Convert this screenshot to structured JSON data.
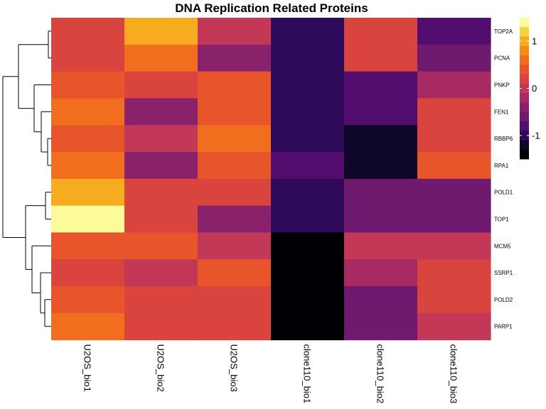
{
  "chart_data": {
    "type": "heatmap",
    "title": "DNA Replication Related Proteins",
    "rows": [
      "TOP2A",
      "PCNA",
      "PNKP",
      "FEN1",
      "RBBP6",
      "RPA1",
      "POLD1",
      "TOP1",
      "MCM5",
      "SSRP1",
      "POLD2",
      "PARP1"
    ],
    "columns": [
      "U2OS_bio1",
      "U2OS_bio2",
      "U2OS_bio3",
      "clone110_bio1",
      "clone110_bio2",
      "clone110_bio3"
    ],
    "values": [
      [
        0.25,
        1.05,
        0.05,
        -1.05,
        0.25,
        -0.75
      ],
      [
        0.25,
        0.65,
        -0.45,
        -1.05,
        0.25,
        -0.55
      ],
      [
        0.45,
        0.25,
        0.45,
        -1.05,
        -0.75,
        -0.25
      ],
      [
        0.65,
        -0.45,
        0.45,
        -1.05,
        -0.75,
        0.25
      ],
      [
        0.45,
        0.05,
        0.65,
        -0.95,
        -1.25,
        0.25
      ],
      [
        0.65,
        -0.45,
        0.45,
        -0.75,
        -1.25,
        0.45
      ],
      [
        1.05,
        0.25,
        0.25,
        -1.05,
        -0.55,
        -0.55
      ],
      [
        1.45,
        0.25,
        -0.45,
        -0.95,
        -0.55,
        -0.55
      ],
      [
        0.45,
        0.45,
        0.05,
        -1.45,
        0.05,
        0.05
      ],
      [
        0.25,
        0.05,
        0.45,
        -1.45,
        -0.25,
        0.25
      ],
      [
        0.45,
        0.25,
        0.25,
        -1.45,
        -0.55,
        0.25
      ],
      [
        0.65,
        0.25,
        0.25,
        -1.45,
        -0.55,
        0.05
      ]
    ],
    "colorscale": {
      "colors": [
        "#000004",
        "#0d0829",
        "#2f0a5b",
        "#520d6f",
        "#6f1a6e",
        "#8a216b",
        "#a82a63",
        "#c33757",
        "#d9443f",
        "#e8552b",
        "#f06e1d",
        "#f58e10",
        "#f7ac1f",
        "#f3d23e",
        "#fcfb99"
      ],
      "min": -1.5,
      "max": 1.5,
      "ticks": [
        {
          "value": 1,
          "label": "1"
        },
        {
          "value": 0,
          "label": "0"
        },
        {
          "value": -1,
          "label": "-1"
        }
      ]
    },
    "dendrogram": "rows"
  }
}
